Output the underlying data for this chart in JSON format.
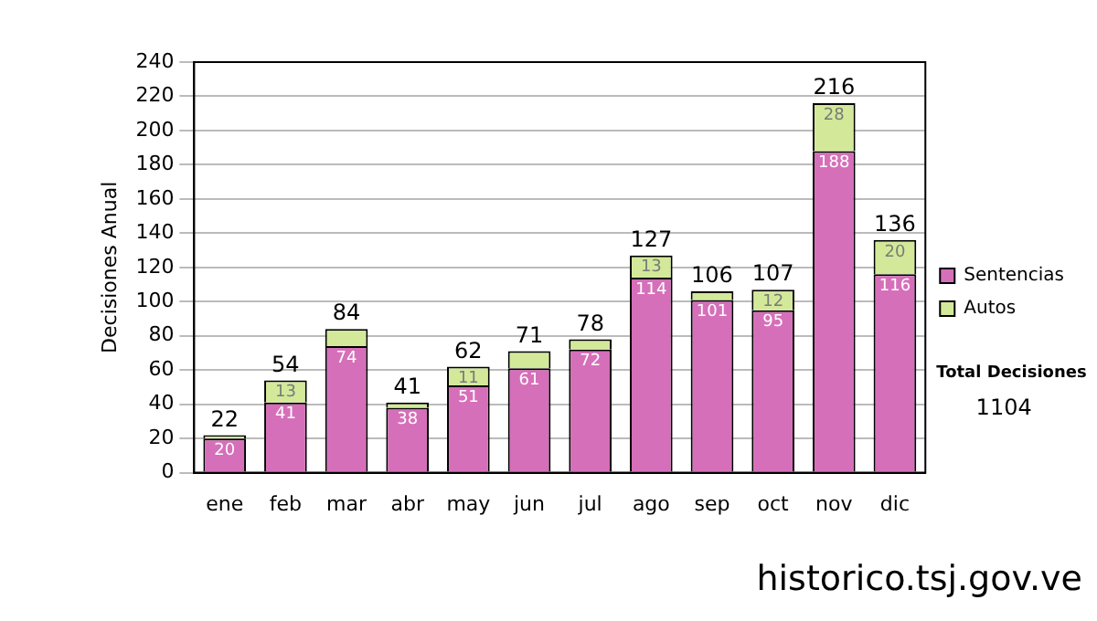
{
  "chart_data": {
    "type": "bar",
    "stacked": true,
    "ylabel": "Decisiones Anual",
    "categories": [
      "ene",
      "feb",
      "mar",
      "abr",
      "may",
      "jun",
      "jul",
      "ago",
      "sep",
      "oct",
      "nov",
      "dic"
    ],
    "series": [
      {
        "name": "Sentencias",
        "color": "#d66fb9",
        "values": [
          20,
          41,
          74,
          38,
          51,
          61,
          72,
          114,
          101,
          95,
          188,
          116
        ],
        "value_labels": [
          "20",
          "41",
          "74",
          "38",
          "51",
          "61",
          "72",
          "114",
          "101",
          "95",
          "188",
          "116"
        ]
      },
      {
        "name": "Autos",
        "color": "#d3e999",
        "values": [
          2,
          13,
          10,
          3,
          11,
          10,
          6,
          13,
          5,
          12,
          28,
          20
        ],
        "value_labels": [
          null,
          "13",
          null,
          null,
          "11",
          null,
          null,
          "13",
          null,
          "12",
          "28",
          "20"
        ]
      }
    ],
    "totals": [
      "22",
      "54",
      "84",
      "41",
      "62",
      "71",
      "78",
      "127",
      "106",
      "107",
      "216",
      "136"
    ],
    "ylim": [
      0,
      240
    ],
    "yticks": [
      0,
      20,
      40,
      60,
      80,
      100,
      120,
      140,
      160,
      180,
      200,
      220,
      240
    ],
    "grid": "y",
    "legend": "right",
    "annotations": [
      "Total Decisiones",
      "1104",
      "historico.tsj.gov.ve"
    ]
  }
}
